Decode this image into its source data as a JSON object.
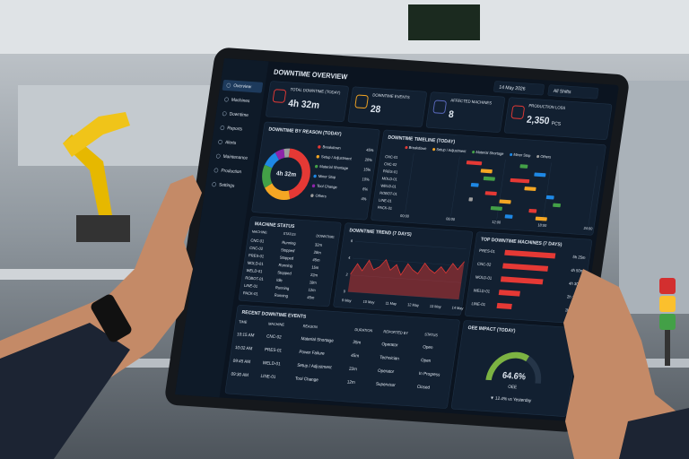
{
  "header": {
    "title": "DOWNTIME OVERVIEW",
    "date": "14 May 2026",
    "shift": "All Shifts"
  },
  "sidebar": [
    "Overview",
    "Machines",
    "Downtime",
    "Reports",
    "Alerts",
    "Maintenance",
    "Production",
    "Settings"
  ],
  "kpis": [
    {
      "label": "TOTAL DOWNTIME (TODAY)",
      "value": "4h 32m",
      "color": "#e53935"
    },
    {
      "label": "DOWNTIME EVENTS",
      "value": 28,
      "color": "#f5a623"
    },
    {
      "label": "AFFECTED MACHINES",
      "value": 8,
      "color": "#5c6bc0"
    },
    {
      "label": "PRODUCTION LOSS",
      "value": "2,350",
      "unit": "PCS",
      "color": "#e53935"
    }
  ],
  "chart_data": [
    {
      "type": "pie",
      "title": "DOWNTIME BY REASON (TODAY)",
      "center_label": "4h 32m",
      "categories": [
        "Breakdown",
        "Setup / Adjustment",
        "Material Shortage",
        "Minor Stop",
        "Tool Change",
        "Others"
      ],
      "values": [
        45,
        20,
        15,
        10,
        6,
        4
      ],
      "value_labels": [
        "45%",
        "20%",
        "15%",
        "10%",
        "6%",
        "4%"
      ],
      "colors": [
        "#e53935",
        "#f5a623",
        "#43a047",
        "#1e88e5",
        "#8e24aa",
        "#9e9e9e"
      ]
    },
    {
      "type": "timeline",
      "title": "DOWNTIME TIMELINE (TODAY)",
      "categories": [
        "CNC-01",
        "CNC-02",
        "PRES-01",
        "MOLD-01",
        "WELD-01",
        "ROBOT-01",
        "LINE-01",
        "PACK-01"
      ],
      "xlim": [
        0,
        24
      ],
      "xticks": [
        {
          "value": 0,
          "label": "00:00"
        },
        {
          "value": 6,
          "label": "06:00"
        },
        {
          "value": 12,
          "label": "12:00"
        },
        {
          "value": 18,
          "label": "18:00"
        },
        {
          "value": 24,
          "label": "24:00"
        }
      ],
      "series": [
        {
          "name": "Breakdown",
          "color": "#e53935",
          "values": [
            [
              7,
              9
            ],
            null,
            [
              13,
              15.5
            ],
            null,
            [
              10,
              11.5
            ],
            null,
            [
              16,
              17
            ],
            null
          ]
        },
        {
          "name": "Setup / Adjustment",
          "color": "#f5a623",
          "values": [
            null,
            [
              9,
              10.5
            ],
            null,
            [
              15,
              16.5
            ],
            null,
            [
              12,
              13.5
            ],
            null,
            [
              17,
              18.5
            ]
          ]
        },
        {
          "name": "Material Shortage",
          "color": "#43a047",
          "values": [
            [
              14,
              15
            ],
            null,
            [
              9.5,
              11
            ],
            null,
            null,
            [
              19,
              20
            ],
            [
              11,
              12.5
            ],
            null
          ]
        },
        {
          "name": "Minor Stop",
          "color": "#1e88e5",
          "values": [
            null,
            [
              16,
              17.5
            ],
            null,
            [
              8,
              9
            ],
            [
              18,
              19
            ],
            null,
            null,
            [
              13,
              14
            ]
          ]
        },
        {
          "name": "Others",
          "color": "#9e9e9e",
          "values": [
            null,
            null,
            null,
            null,
            null,
            [
              8,
              8.5
            ],
            null,
            null
          ]
        }
      ]
    },
    {
      "type": "area",
      "title": "DOWNTIME TREND (7 DAYS)",
      "color": "#e53935",
      "categories": [
        "9 May",
        null,
        null,
        null,
        "10 May",
        null,
        null,
        null,
        "11 May",
        null,
        null,
        null,
        "12 May",
        null,
        null,
        null,
        "13 May",
        null,
        null,
        null,
        "14 May"
      ],
      "values": [
        2.1,
        3.4,
        2.6,
        3.9,
        2.8,
        3.2,
        4.1,
        2.9,
        3.6,
        2.4,
        3.8,
        3.1,
        2.7,
        4.0,
        3.3,
        2.9,
        3.7,
        3.0,
        4.2,
        3.5,
        4.5
      ],
      "ylim": [
        0,
        6
      ],
      "yticks": [
        0,
        2,
        4,
        6
      ]
    },
    {
      "type": "bar",
      "orientation": "horizontal",
      "title": "TOP DOWNTIME MACHINES (7 DAYS)",
      "color": "#e53935",
      "categories": [
        "PRES-01",
        "CNC-02",
        "MOLD-01",
        "WELD-01",
        "LINE-01"
      ],
      "values": [
        325,
        290,
        270,
        135,
        95
      ],
      "value_labels": [
        "5h 25m",
        "4h 50m",
        "4h 30m",
        "2h 15m",
        "1h 35m"
      ],
      "xlim": [
        0,
        360
      ]
    },
    {
      "type": "gauge",
      "title": "OEE IMPACT (TODAY)",
      "value": 64.6,
      "value_label": "64.6%",
      "label": "OEE",
      "ylim": [
        0,
        100
      ],
      "change_label": "▼ 12.4% vs Yesterday",
      "color": "#7cb342"
    }
  ],
  "machine_status": {
    "title": "MACHINE STATUS",
    "columns": [
      "MACHINE",
      "STATUS",
      "DOWNTIME"
    ],
    "rows": [
      [
        "CNC-01",
        "Running",
        "32m"
      ],
      [
        "CNC-02",
        "Stopped",
        "28m"
      ],
      [
        "PRES-01",
        "Stopped",
        "45m"
      ],
      [
        "MOLD-01",
        "Running",
        "15m"
      ],
      [
        "WELD-01",
        "Stopped",
        "22m"
      ],
      [
        "ROBOT-01",
        "Idle",
        "18m"
      ],
      [
        "LINE-01",
        "Running",
        "12m"
      ],
      [
        "PACK-01",
        "Running",
        "45m"
      ]
    ]
  },
  "recent_events": {
    "title": "RECENT DOWNTIME EVENTS",
    "columns": [
      "TIME",
      "MACHINE",
      "REASON",
      "DURATION",
      "REPORTED BY",
      "STATUS"
    ],
    "rows": [
      [
        "10:15 AM",
        "CNC-02",
        "Material Shortage",
        "35m",
        "Operator",
        "Open"
      ],
      [
        "10:02 AM",
        "PRES-01",
        "Power Failure",
        "45m",
        "Technician",
        "Open"
      ],
      [
        "09:45 AM",
        "WELD-01",
        "Setup / Adjustment",
        "22m",
        "Operator",
        "In Progress"
      ],
      [
        "09:30 AM",
        "LINE-01",
        "Tool Change",
        "12m",
        "Supervisor",
        "Closed"
      ]
    ]
  }
}
